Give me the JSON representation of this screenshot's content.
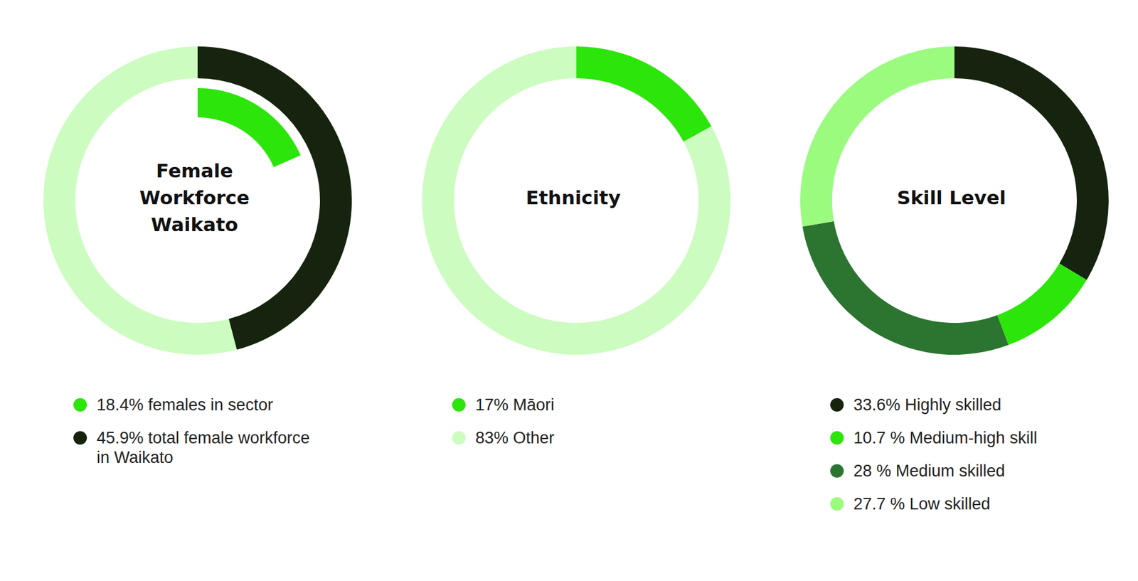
{
  "chart_data": [
    {
      "type": "progress_rings",
      "title": "Female Workforce Waikato",
      "categories": [
        "18.4% females in sector",
        "45.9% total female workforce in Waikato"
      ],
      "values": [
        18.4,
        45.9
      ],
      "colors": [
        "#2ce50a",
        "#15230f"
      ],
      "color": "#ccfcc0"
    },
    {
      "type": "donut",
      "title": "Ethnicity",
      "categories": [
        "17% Māori",
        "83% Other"
      ],
      "values": [
        17,
        83
      ],
      "colors": [
        "#2ce50a",
        "#ccfcc0"
      ]
    },
    {
      "type": "donut",
      "title": "Skill Level",
      "categories": [
        "33.6% Highly skilled",
        "10.7 % Medium-high skill",
        "28 % Medium skilled",
        "27.7 % Low skilled"
      ],
      "values": [
        33.6,
        10.7,
        28,
        27.7
      ],
      "colors": [
        "#15230f",
        "#2ce50a",
        "#2b7530",
        "#9afb7f"
      ]
    }
  ]
}
